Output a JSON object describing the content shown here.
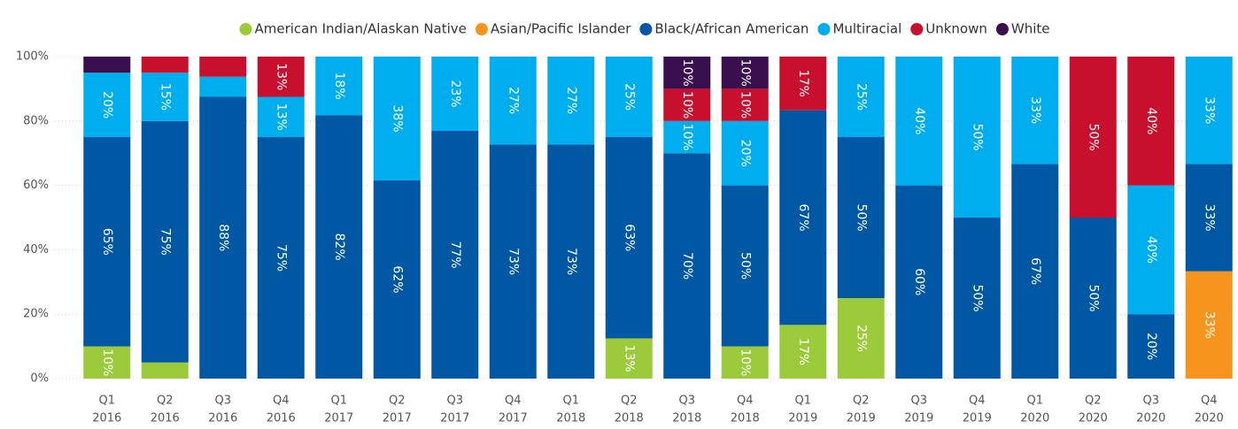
{
  "chart_data": {
    "type": "stacked_bar_100",
    "categories": [
      [
        "Q1",
        "2016"
      ],
      [
        "Q2",
        "2016"
      ],
      [
        "Q3",
        "2016"
      ],
      [
        "Q4",
        "2016"
      ],
      [
        "Q1",
        "2017"
      ],
      [
        "Q2",
        "2017"
      ],
      [
        "Q3",
        "2017"
      ],
      [
        "Q4",
        "2017"
      ],
      [
        "Q1",
        "2018"
      ],
      [
        "Q2",
        "2018"
      ],
      [
        "Q3",
        "2018"
      ],
      [
        "Q4",
        "2018"
      ],
      [
        "Q1",
        "2019"
      ],
      [
        "Q2",
        "2019"
      ],
      [
        "Q3",
        "2019"
      ],
      [
        "Q4",
        "2019"
      ],
      [
        "Q1",
        "2020"
      ],
      [
        "Q2",
        "2020"
      ],
      [
        "Q3",
        "2020"
      ],
      [
        "Q4",
        "2020"
      ]
    ],
    "series": [
      {
        "name": "American Indian/Alaskan Native",
        "color": "#9bcb3b",
        "values": [
          10,
          5,
          0,
          0,
          0,
          0,
          0,
          0,
          0,
          12.5,
          0,
          10,
          16.67,
          25,
          0,
          0,
          0,
          0,
          0,
          0
        ],
        "value_labels": [
          "10%",
          null,
          null,
          null,
          null,
          null,
          null,
          null,
          null,
          "13%",
          null,
          "10%",
          "17%",
          "25%",
          null,
          null,
          null,
          null,
          null,
          null
        ]
      },
      {
        "name": "Asian/Pacific Islander",
        "color": "#f7941d",
        "values": [
          0,
          0,
          0,
          0,
          0,
          0,
          0,
          0,
          0,
          0,
          0,
          0,
          0,
          0,
          0,
          0,
          0,
          0,
          0,
          33.33
        ],
        "value_labels": [
          null,
          null,
          null,
          null,
          null,
          null,
          null,
          null,
          null,
          null,
          null,
          null,
          null,
          null,
          null,
          null,
          null,
          null,
          null,
          "33%"
        ]
      },
      {
        "name": "Black/African American",
        "color": "#0057a3",
        "values": [
          65,
          75,
          87.5,
          75,
          81.82,
          61.54,
          76.92,
          72.73,
          72.73,
          62.5,
          70,
          50,
          66.67,
          50,
          60,
          50,
          66.67,
          50,
          20,
          33.33
        ],
        "value_labels": [
          "65%",
          "75%",
          "88%",
          "75%",
          "82%",
          "62%",
          "77%",
          "73%",
          "73%",
          "63%",
          "70%",
          "50%",
          "67%",
          "50%",
          "60%",
          "50%",
          "67%",
          "50%",
          "20%",
          "33%"
        ]
      },
      {
        "name": "Multiracial",
        "color": "#00aeef",
        "values": [
          20,
          15,
          6.25,
          12.5,
          18.18,
          38.46,
          23.08,
          27.27,
          27.27,
          25,
          10,
          20,
          0,
          25,
          40,
          50,
          33.33,
          0,
          40,
          33.33
        ],
        "value_labels": [
          "20%",
          "15%",
          null,
          "13%",
          "18%",
          "38%",
          "23%",
          "27%",
          "27%",
          "25%",
          "10%",
          "20%",
          null,
          "25%",
          "40%",
          "50%",
          "33%",
          null,
          "40%",
          "33%"
        ]
      },
      {
        "name": "Unknown",
        "color": "#c8102e",
        "values": [
          0,
          5,
          6.25,
          12.5,
          0,
          0,
          0,
          0,
          0,
          0,
          10,
          10,
          16.67,
          0,
          0,
          0,
          0,
          50,
          40,
          0
        ],
        "value_labels": [
          null,
          null,
          null,
          "13%",
          null,
          null,
          null,
          null,
          null,
          null,
          "10%",
          "10%",
          "17%",
          null,
          null,
          null,
          null,
          "50%",
          "40%",
          null
        ]
      },
      {
        "name": "White",
        "color": "#3b0f4f",
        "values": [
          5,
          0,
          0,
          0,
          0,
          0,
          0,
          0,
          0,
          0,
          10,
          10,
          0,
          0,
          0,
          0,
          0,
          0,
          0,
          0
        ],
        "value_labels": [
          null,
          null,
          null,
          null,
          null,
          null,
          null,
          null,
          null,
          null,
          "10%",
          "10%",
          null,
          null,
          null,
          null,
          null,
          null,
          null,
          null
        ]
      }
    ],
    "ylim": [
      0,
      100
    ],
    "yticks": [
      {
        "value": 0,
        "label": "0%"
      },
      {
        "value": 20,
        "label": "20%"
      },
      {
        "value": 40,
        "label": "40%"
      },
      {
        "value": 60,
        "label": "60%"
      },
      {
        "value": 80,
        "label": "80%"
      },
      {
        "value": 100,
        "label": "100%"
      }
    ],
    "grid": true,
    "legend": "top"
  }
}
